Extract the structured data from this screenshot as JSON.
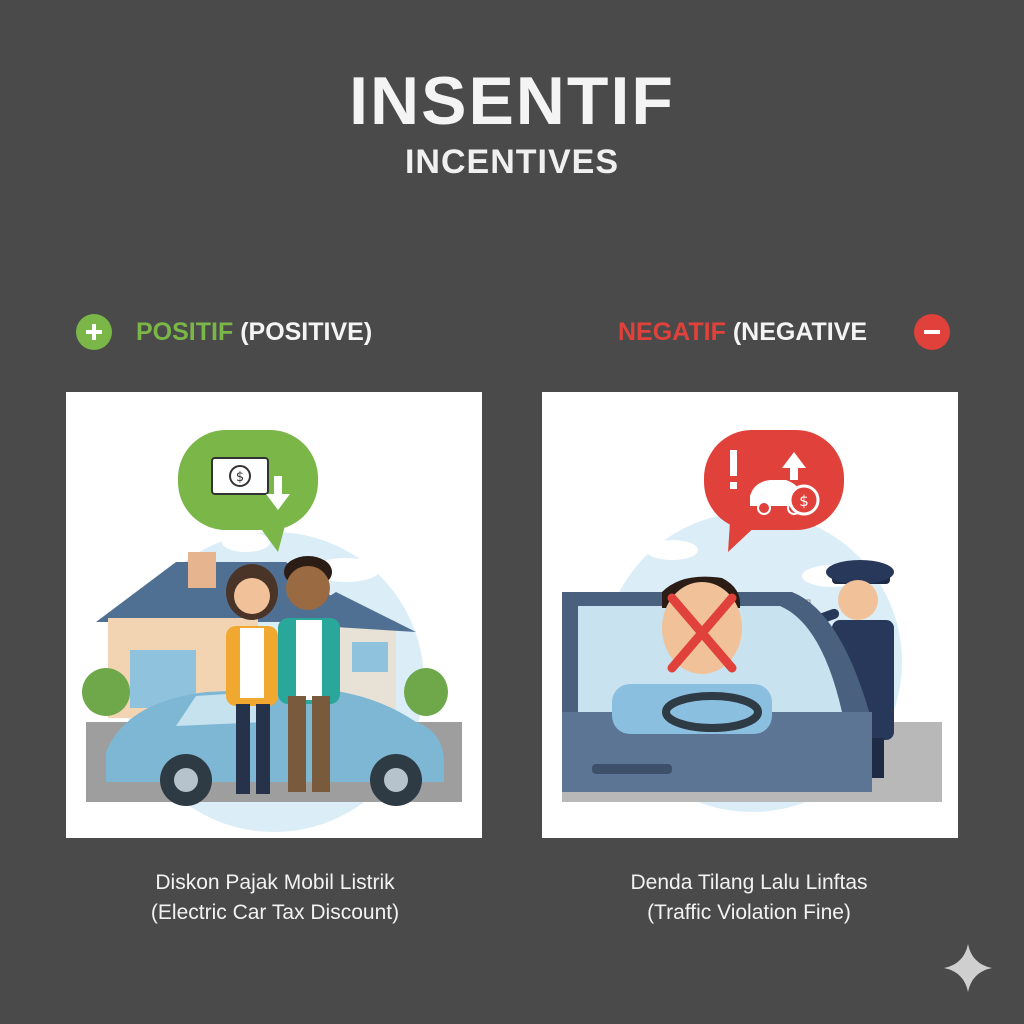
{
  "title": "INSENTIF",
  "subtitle": "INCENTIVES",
  "positive": {
    "keyword": "POSITIF",
    "english": "(POSITIVE)",
    "icon": "plus-icon",
    "color": "#7ab648",
    "caption_line1": "Diskon Pajak Mobil Listrik",
    "caption_line2": "(Electric Car Tax Discount)"
  },
  "negative": {
    "keyword": "NEGATIF",
    "english": "(NEGATIVE",
    "icon": "minus-icon",
    "color": "#e0413a",
    "caption_line1": "Denda Tilang Lalu Linftas",
    "caption_line2": "(Traffic Violation Fine)"
  },
  "watermark_icon": "sparkle-icon"
}
